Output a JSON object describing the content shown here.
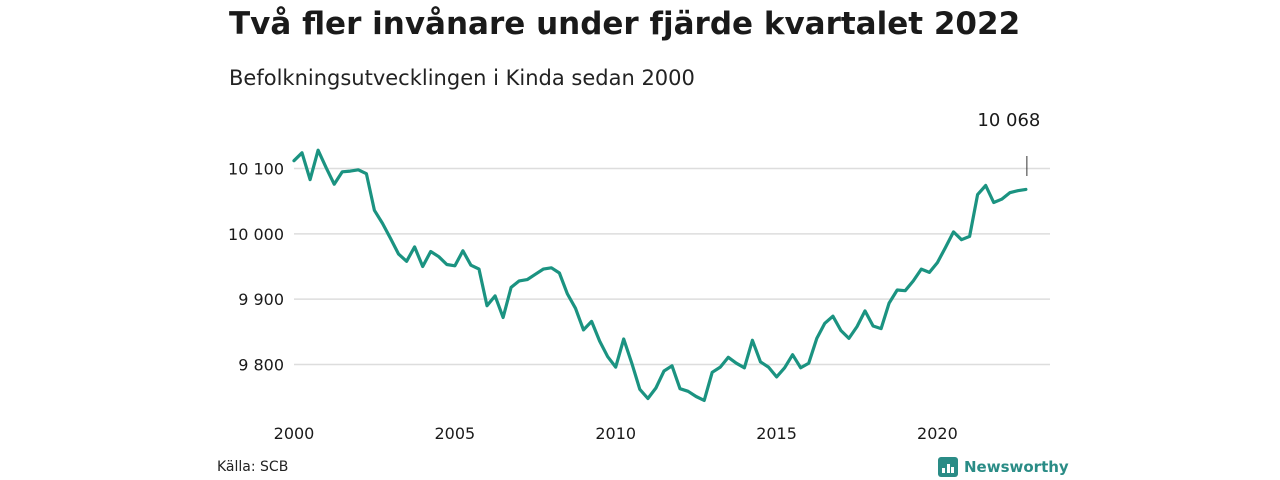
{
  "title": "Två fler invånare under fjärde kvartalet 2022",
  "subtitle": "Befolkningsutvecklingen i Kinda sedan 2000",
  "source": "Källa: SCB",
  "brand": "Newsworthy",
  "colors": {
    "line": "#1b9381",
    "grid": "#dddddd",
    "text": "#1a1a1a",
    "brand": "#2a8c86"
  },
  "chart_data": {
    "type": "line",
    "title": "Två fler invånare under fjärde kvartalet 2022",
    "subtitle": "Befolkningsutvecklingen i Kinda sedan 2000",
    "xlim": [
      2000,
      2023
    ],
    "ylim": [
      9720,
      10150
    ],
    "x_ticks": [
      2000,
      2005,
      2010,
      2015,
      2020
    ],
    "x_tick_labels": [
      "2000",
      "2005",
      "2010",
      "2015",
      "2020"
    ],
    "y_ticks": [
      9800,
      9900,
      10000,
      10100
    ],
    "y_tick_labels": [
      "9 800",
      "9 900",
      "10 000",
      "10 100"
    ],
    "grid": "horizontal",
    "annotation": {
      "x": 2022.75,
      "y": 10068,
      "label": "10 068"
    },
    "series": [
      {
        "x": [
          2000.0,
          2000.25,
          2000.5,
          2000.75,
          2001.0,
          2001.25,
          2001.5,
          2001.75,
          2002.0,
          2002.25,
          2002.5,
          2002.75,
          2003.0,
          2003.25,
          2003.5,
          2003.75,
          2004.0,
          2004.25,
          2004.5,
          2004.75,
          2005.0,
          2005.25,
          2005.5,
          2005.75,
          2006.0,
          2006.25,
          2006.5,
          2006.75,
          2007.0,
          2007.25,
          2007.5,
          2007.75,
          2008.0,
          2008.25,
          2008.5,
          2008.75,
          2009.0,
          2009.25,
          2009.5,
          2009.75,
          2010.0,
          2010.25,
          2010.5,
          2010.75,
          2011.0,
          2011.25,
          2011.5,
          2011.75,
          2012.0,
          2012.25,
          2012.5,
          2012.75,
          2013.0,
          2013.25,
          2013.5,
          2013.75,
          2014.0,
          2014.25,
          2014.5,
          2014.75,
          2015.0,
          2015.25,
          2015.5,
          2015.75,
          2016.0,
          2016.25,
          2016.5,
          2016.75,
          2017.0,
          2017.25,
          2017.5,
          2017.75,
          2018.0,
          2018.25,
          2018.5,
          2018.75,
          2019.0,
          2019.25,
          2019.5,
          2019.75,
          2020.0,
          2020.25,
          2020.5,
          2020.75,
          2021.0,
          2021.25,
          2021.5,
          2021.75,
          2022.0,
          2022.25,
          2022.5,
          2022.75
        ],
        "values": [
          10112,
          10124,
          10083,
          10128,
          10101,
          10076,
          10095,
          10096,
          10098,
          10092,
          10036,
          10016,
          9993,
          9969,
          9958,
          9980,
          9950,
          9973,
          9965,
          9953,
          9951,
          9974,
          9952,
          9946,
          9890,
          9905,
          9872,
          9918,
          9928,
          9930,
          9938,
          9946,
          9948,
          9940,
          9908,
          9886,
          9853,
          9866,
          9836,
          9812,
          9796,
          9839,
          9802,
          9762,
          9748,
          9764,
          9790,
          9798,
          9763,
          9759,
          9751,
          9745,
          9788,
          9796,
          9811,
          9802,
          9795,
          9837,
          9804,
          9796,
          9781,
          9795,
          9815,
          9795,
          9802,
          9840,
          9863,
          9874,
          9852,
          9840,
          9858,
          9882,
          9859,
          9855,
          9894,
          9914,
          9913,
          9928,
          9946,
          9941,
          9956,
          9979,
          10003,
          9991,
          9996,
          10060,
          10074,
          10048,
          10053,
          10063,
          10066,
          10068
        ]
      }
    ]
  }
}
